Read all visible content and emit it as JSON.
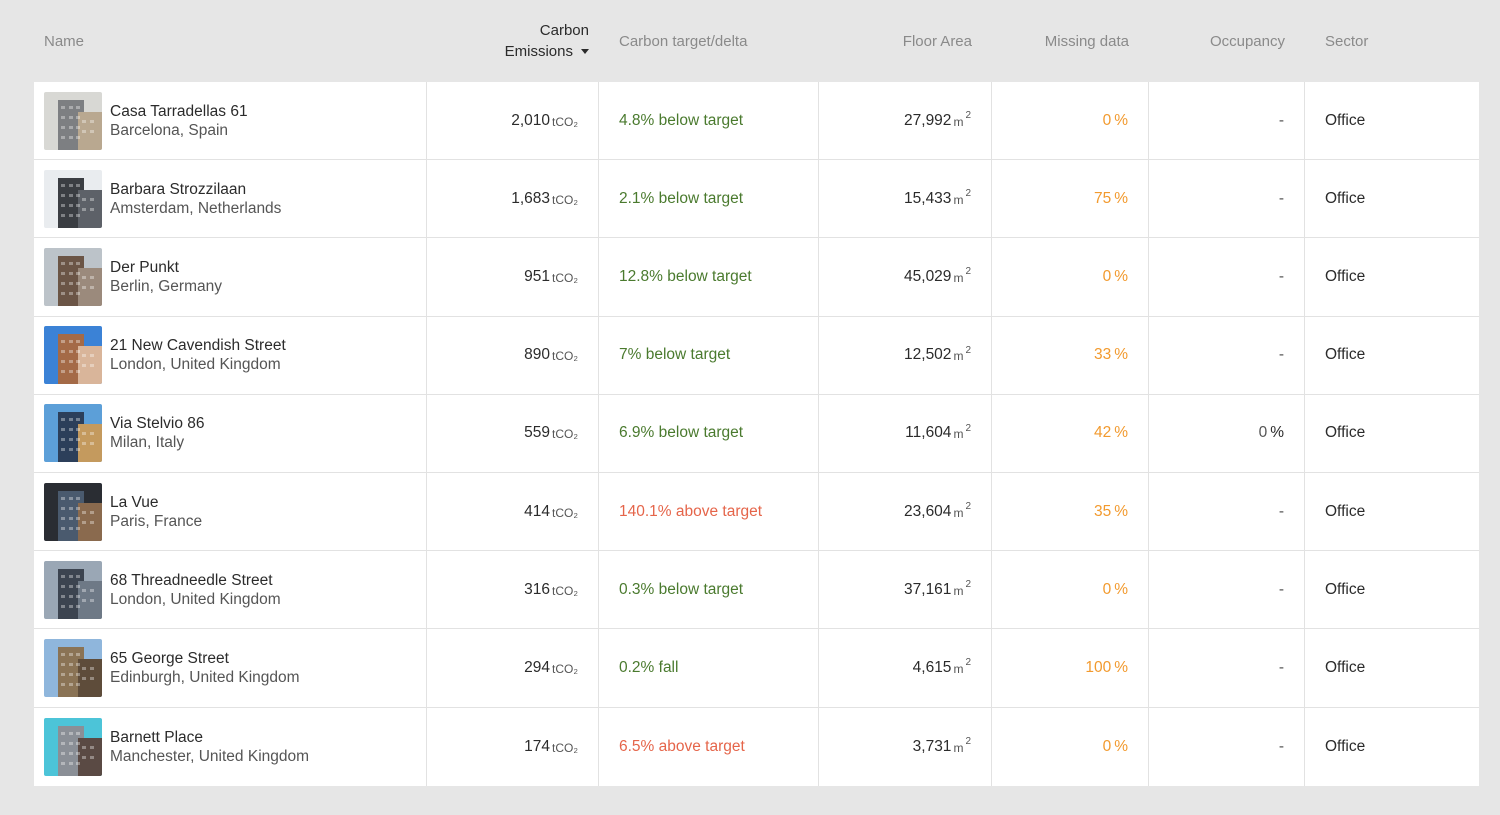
{
  "columns": {
    "name": "Name",
    "carbon_line1": "Carbon",
    "carbon_line2": "Emissions",
    "target": "Carbon target/delta",
    "floor": "Floor Area",
    "missing": "Missing data",
    "occupancy": "Occupancy",
    "sector": "Sector"
  },
  "units": {
    "carbon": "tCO₂",
    "area": "m",
    "area_exp": "2",
    "percent": "%"
  },
  "rows": [
    {
      "name": "Casa Tarradellas 61",
      "location": "Barcelona, Spain",
      "carbon": "2,010",
      "target": "4.8% below target",
      "status": "below",
      "floor": "27,992",
      "missing": "0",
      "occupancy": "-",
      "sector": "Office",
      "thumb": [
        "#d8d8d4",
        "#7d7f82",
        "#b9a890"
      ]
    },
    {
      "name": "Barbara Strozzilaan",
      "location": "Amsterdam, Netherlands",
      "carbon": "1,683",
      "target": "2.1% below target",
      "status": "below",
      "floor": "15,433",
      "missing": "75",
      "occupancy": "-",
      "sector": "Office",
      "thumb": [
        "#e9ecef",
        "#3a3d42",
        "#5d6168"
      ]
    },
    {
      "name": "Der Punkt",
      "location": "Berlin, Germany",
      "carbon": "951",
      "target": "12.8% below target",
      "status": "below",
      "floor": "45,029",
      "missing": "0",
      "occupancy": "-",
      "sector": "Office",
      "thumb": [
        "#bcc3c9",
        "#6b5546",
        "#9b8a7c"
      ]
    },
    {
      "name": "21 New Cavendish Street",
      "location": "London, United Kingdom",
      "carbon": "890",
      "target": "7% below target",
      "status": "below",
      "floor": "12,502",
      "missing": "33",
      "occupancy": "-",
      "sector": "Office",
      "thumb": [
        "#3b82d6",
        "#a46a47",
        "#d9b59a"
      ]
    },
    {
      "name": "Via Stelvio 86",
      "location": "Milan, Italy",
      "carbon": "559",
      "target": "6.9% below target",
      "status": "below",
      "floor": "11,604",
      "missing": "42",
      "occupancy": "0",
      "sector": "Office",
      "thumb": [
        "#5c9fd8",
        "#2c3f5a",
        "#c49a5e"
      ]
    },
    {
      "name": "La Vue",
      "location": "Paris, France",
      "carbon": "414",
      "target": "140.1% above target",
      "status": "above",
      "floor": "23,604",
      "missing": "35",
      "occupancy": "-",
      "sector": "Office",
      "thumb": [
        "#2a2d33",
        "#4a5a6e",
        "#8a6a4e"
      ]
    },
    {
      "name": "68 Threadneedle Street",
      "location": "London, United Kingdom",
      "carbon": "316",
      "target": "0.3% below target",
      "status": "below",
      "floor": "37,161",
      "missing": "0",
      "occupancy": "-",
      "sector": "Office",
      "thumb": [
        "#9aa7b5",
        "#3c4450",
        "#6e7986"
      ]
    },
    {
      "name": "65 George Street",
      "location": "Edinburgh, United Kingdom",
      "carbon": "294",
      "target": "0.2% fall",
      "status": "below",
      "floor": "4,615",
      "missing": "100",
      "occupancy": "-",
      "sector": "Office",
      "thumb": [
        "#8fb6dc",
        "#8a7355",
        "#5e4c3a"
      ]
    },
    {
      "name": "Barnett Place",
      "location": "Manchester, United Kingdom",
      "carbon": "174",
      "target": "6.5% above target",
      "status": "above",
      "floor": "3,731",
      "missing": "0",
      "occupancy": "-",
      "sector": "Office",
      "thumb": [
        "#4cc4d8",
        "#8a8f96",
        "#5a4a44"
      ]
    }
  ]
}
